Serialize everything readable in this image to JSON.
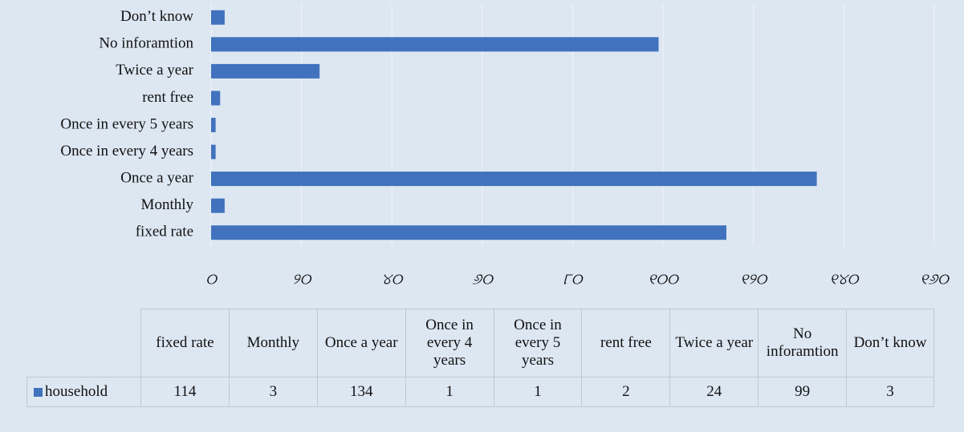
{
  "chart_data": {
    "type": "bar",
    "orientation": "horizontal",
    "categories": [
      "fixed rate",
      "Monthly",
      "Once a year",
      "Once in every 4 years",
      "Once in every 5 years",
      "rent free",
      "Twice a year",
      "No inforamtion",
      "Don’t know"
    ],
    "series": [
      {
        "name": "household",
        "color": "#4172bd",
        "values": [
          114,
          3,
          134,
          1,
          1,
          2,
          24,
          99,
          3
        ]
      }
    ],
    "xlim": [
      0,
      160
    ],
    "xticks": [
      {
        "value": 0,
        "label": "୦"
      },
      {
        "value": 20,
        "label": "୨୦"
      },
      {
        "value": 40,
        "label": "୪୦"
      },
      {
        "value": 60,
        "label": "୬୦"
      },
      {
        "value": 80,
        "label": "୮୦"
      },
      {
        "value": 100,
        "label": "୧୦୦"
      },
      {
        "value": 120,
        "label": "୧୨୦"
      },
      {
        "value": 140,
        "label": "୧୪୦"
      },
      {
        "value": 160,
        "label": "୧୬୦"
      }
    ],
    "grid": true,
    "data_table": true
  }
}
